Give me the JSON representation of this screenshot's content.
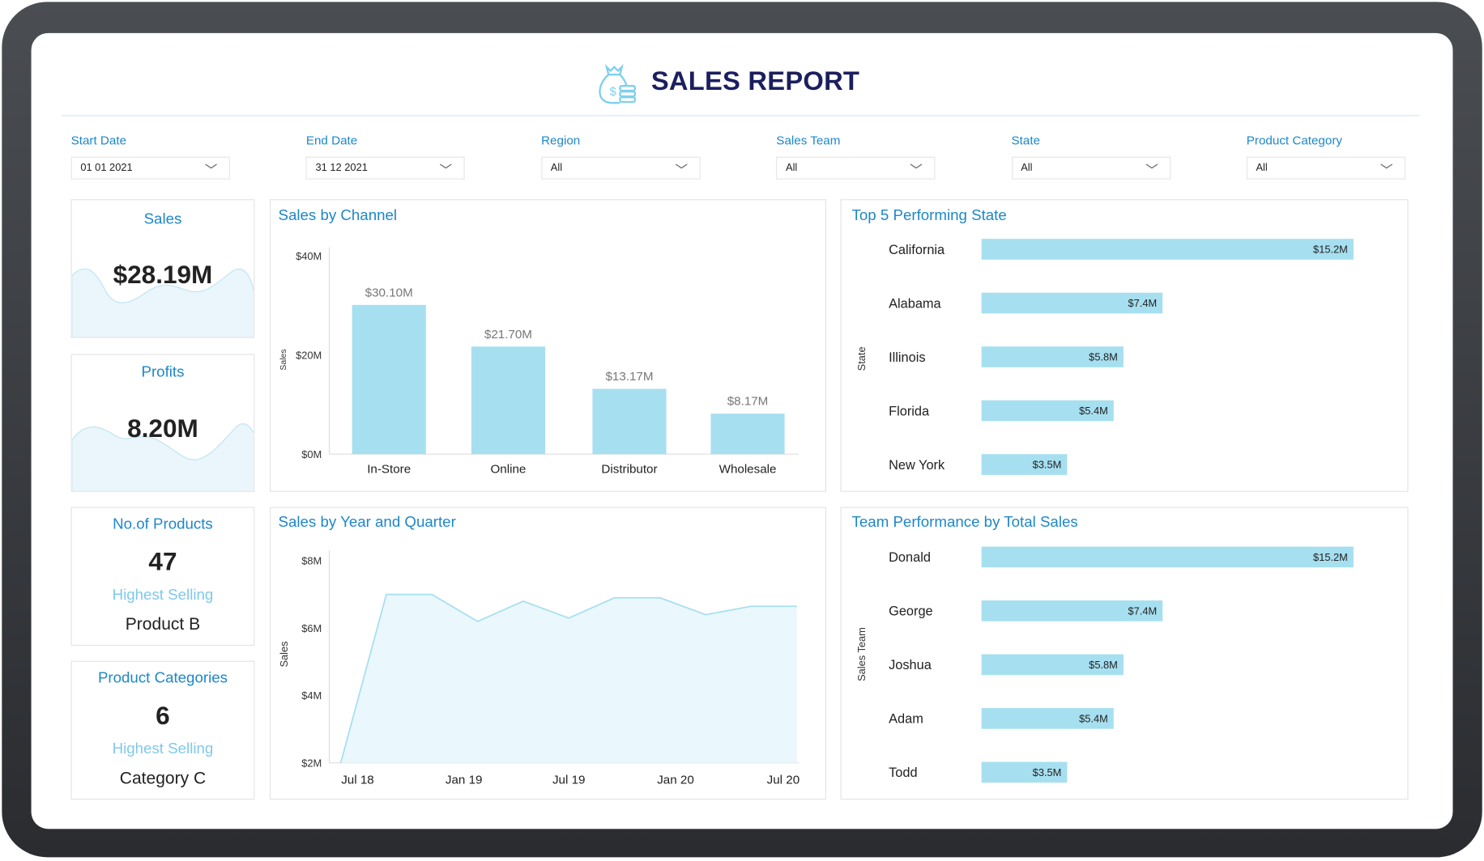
{
  "header": {
    "title": "SALES REPORT",
    "icon": "money-bag-icon"
  },
  "filters": [
    {
      "label": "Start Date",
      "value": "01 01 2021"
    },
    {
      "label": "End Date",
      "value": "31 12 2021"
    },
    {
      "label": "Region",
      "value": "All"
    },
    {
      "label": "Sales Team",
      "value": "All"
    },
    {
      "label": "State",
      "value": "All"
    },
    {
      "label": "Product Category",
      "value": "All"
    }
  ],
  "kpis": {
    "sales": {
      "label": "Sales",
      "value": "$28.19M"
    },
    "profits": {
      "label": "Profits",
      "value": "8.20M"
    },
    "products": {
      "label": "No.of Products",
      "value": "47",
      "sub": "Highest Selling",
      "top": "Product B"
    },
    "categories": {
      "label": "Product Categories",
      "value": "6",
      "sub": "Highest Selling",
      "top": "Category C"
    }
  },
  "colors": {
    "accent": "#1d87c9",
    "bar": "#a6dff0",
    "title": "#1b1f5e"
  },
  "chart_data": [
    {
      "type": "bar",
      "title": "Sales by Channel",
      "ylabel": "Sales",
      "ylim": [
        0,
        40
      ],
      "yticks": [
        "$0M",
        "$20M",
        "$40M"
      ],
      "categories": [
        "In-Store",
        "Online",
        "Distributor",
        "Wholesale"
      ],
      "values": [
        30.1,
        21.7,
        13.17,
        8.17
      ],
      "labels": [
        "$30.10M",
        "$21.70M",
        "$13.17M",
        "$8.17M"
      ]
    },
    {
      "type": "bar",
      "orientation": "horizontal",
      "title": "Top 5 Performing State",
      "ylabel": "State",
      "categories": [
        "California",
        "Alabama",
        "Illinois",
        "Florida",
        "New York"
      ],
      "values": [
        15.2,
        7.4,
        5.8,
        5.4,
        3.5
      ],
      "labels": [
        "$15.2M",
        "$7.4M",
        "$5.8M",
        "$5.4M",
        "$3.5M"
      ]
    },
    {
      "type": "area",
      "title": "Sales by Year and Quarter",
      "ylabel": "Sales",
      "ylim": [
        2,
        8
      ],
      "yticks": [
        "$2M",
        "$4M",
        "$6M",
        "$8M"
      ],
      "xticks": [
        "Jul 18",
        "Jan 19",
        "Jul 19",
        "Jan 20",
        "Jul 20"
      ],
      "values": [
        2.0,
        7.0,
        7.0,
        6.2,
        6.8,
        6.3,
        6.9,
        6.9,
        6.4,
        6.65,
        6.65
      ]
    },
    {
      "type": "bar",
      "orientation": "horizontal",
      "title": "Team Performance by Total Sales",
      "ylabel": "Sales Team",
      "categories": [
        "Donald",
        "George",
        "Joshua",
        "Adam",
        "Todd"
      ],
      "values": [
        15.2,
        7.4,
        5.8,
        5.4,
        3.5
      ],
      "labels": [
        "$15.2M",
        "$7.4M",
        "$5.8M",
        "$5.4M",
        "$3.5M"
      ]
    }
  ]
}
